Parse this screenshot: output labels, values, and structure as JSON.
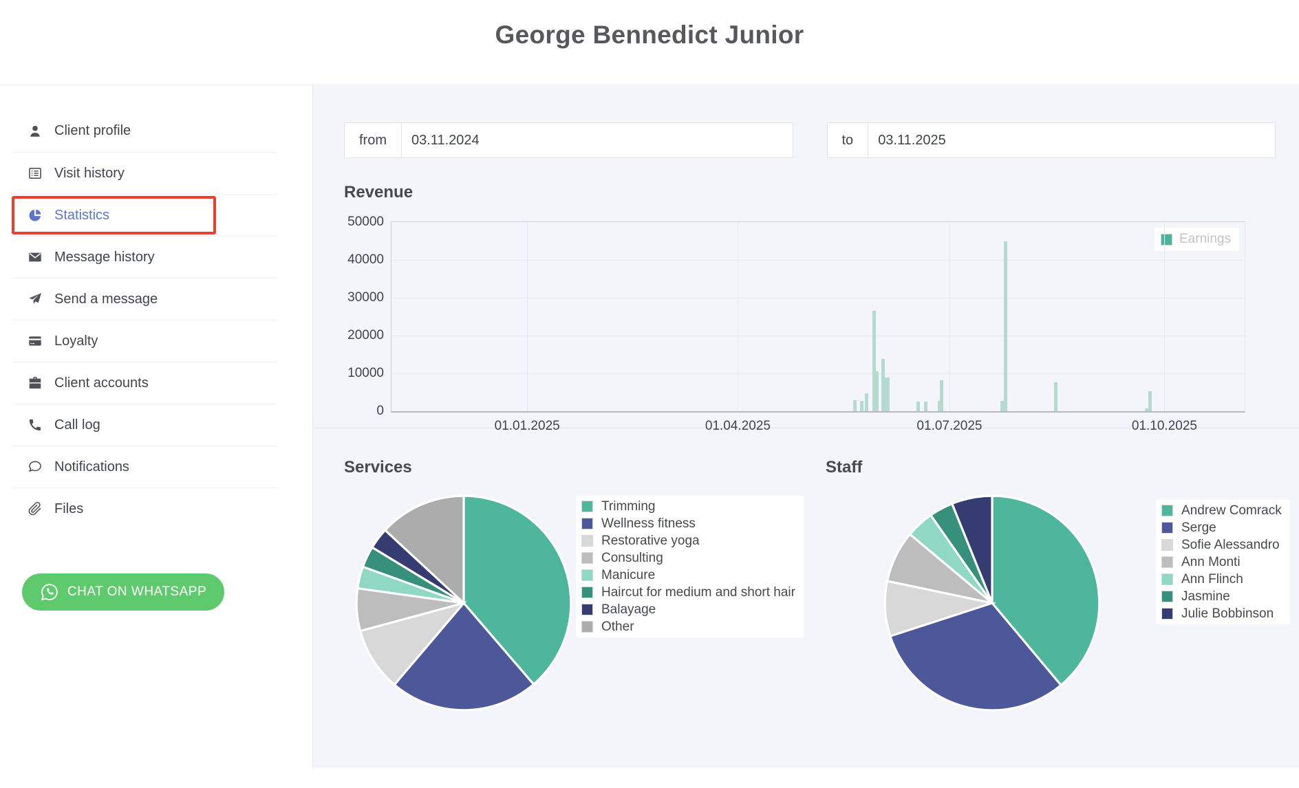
{
  "header": {
    "title": "George Bennedict Junior"
  },
  "sidebar": {
    "items": [
      {
        "label": "Client profile",
        "icon": "user-icon"
      },
      {
        "label": "Visit history",
        "icon": "list-icon"
      },
      {
        "label": "Statistics",
        "icon": "pie-chart-icon",
        "active": true,
        "boxed": true
      },
      {
        "label": "Message history",
        "icon": "envelope-icon"
      },
      {
        "label": "Send a message",
        "icon": "send-icon"
      },
      {
        "label": "Loyalty",
        "icon": "credit-card-icon"
      },
      {
        "label": "Client accounts",
        "icon": "briefcase-icon"
      },
      {
        "label": "Call log",
        "icon": "phone-icon"
      },
      {
        "label": "Notifications",
        "icon": "chat-bubble-icon"
      },
      {
        "label": "Files",
        "icon": "paperclip-icon"
      }
    ],
    "whatsapp_button": {
      "label": "CHAT ON WHATSAPP",
      "color": "#5FC96D"
    }
  },
  "filters": {
    "from_label": "from",
    "from_value": "03.11.2024",
    "to_label": "to",
    "to_value": "03.11.2025"
  },
  "colors": {
    "accent_blue": "#5C75C7",
    "highlight_red": "#E8402C",
    "whatsapp_green": "#5FC96D",
    "teal": "#4CB49B",
    "main_background": "#F4F5FA"
  },
  "chart_data": [
    {
      "type": "bar",
      "title": "Revenue",
      "series_label": "Earnings",
      "legend_position": "top-right",
      "grid": true,
      "ylim": [
        0,
        50000
      ],
      "yticks": [
        0,
        10000,
        20000,
        30000,
        40000,
        50000
      ],
      "xticks": [
        {
          "label": "01.01.2025",
          "pos": 0.159
        },
        {
          "label": "01.04.2025",
          "pos": 0.406
        },
        {
          "label": "01.07.2025",
          "pos": 0.654
        },
        {
          "label": "01.10.2025",
          "pos": 0.906
        }
      ],
      "bar_color": "#4CB49B",
      "bar_fill": "#B5DBD1",
      "bars": [
        {
          "date": "20.05.2025",
          "value": 2900,
          "pos": 0.543
        },
        {
          "date": "23.05.2025",
          "value": 2750,
          "pos": 0.551
        },
        {
          "date": "25.05.2025",
          "value": 4800,
          "pos": 0.557
        },
        {
          "date": "29.05.2025",
          "value": 26600,
          "pos": 0.566
        },
        {
          "date": "30.05.2025",
          "value": 10600,
          "pos": 0.569
        },
        {
          "date": "01.06.2025",
          "value": 13900,
          "pos": 0.576
        },
        {
          "date": "03.06.2025",
          "value": 9000,
          "pos": 0.58,
          "w": 9
        },
        {
          "date": "16.06.2025",
          "value": 2600,
          "pos": 0.617
        },
        {
          "date": "20.06.2025",
          "value": 2600,
          "pos": 0.626
        },
        {
          "date": "25.06.2025",
          "value": 2700,
          "pos": 0.642
        },
        {
          "date": "26.06.2025",
          "value": 8200,
          "pos": 0.645
        },
        {
          "date": "22.07.2025",
          "value": 2700,
          "pos": 0.716
        },
        {
          "date": "24.07.2025",
          "value": 45000,
          "pos": 0.72
        },
        {
          "date": "14.08.2025",
          "value": 7700,
          "pos": 0.779
        },
        {
          "date": "22.09.2025",
          "value": 700,
          "pos": 0.885
        },
        {
          "date": "24.09.2025",
          "value": 5300,
          "pos": 0.889
        }
      ]
    },
    {
      "type": "pie",
      "title": "Services",
      "legend_position": "right",
      "slices": [
        {
          "label": "Trimming",
          "value_pct": 38.7,
          "color": "#4DB69C"
        },
        {
          "label": "Wellness fitness",
          "value_pct": 22.5,
          "color": "#4C5899"
        },
        {
          "label": "Restorative yoga",
          "value_pct": 9.6,
          "color": "#D8D8D8"
        },
        {
          "label": "Consulting",
          "value_pct": 6.4,
          "color": "#BDBDBD"
        },
        {
          "label": "Manicure",
          "value_pct": 3.3,
          "color": "#8FD9C4"
        },
        {
          "label": "Haircut for medium and short hair",
          "value_pct": 3.2,
          "color": "#37907B"
        },
        {
          "label": "Balayage",
          "value_pct": 3.2,
          "color": "#353C72"
        },
        {
          "label": "Other",
          "value_pct": 13.1,
          "color": "#ACACAC"
        }
      ]
    },
    {
      "type": "pie",
      "title": "Staff",
      "legend_position": "right",
      "slices": [
        {
          "label": "Andrew Comrack",
          "value_pct": 38.9,
          "color": "#4DB69C"
        },
        {
          "label": "Serge",
          "value_pct": 31.1,
          "color": "#4C5899"
        },
        {
          "label": "Sofie Alessandro",
          "value_pct": 8.3,
          "color": "#D8D8D8"
        },
        {
          "label": "Ann Monti",
          "value_pct": 7.8,
          "color": "#BDBDBD"
        },
        {
          "label": "Ann Flinch",
          "value_pct": 4.2,
          "color": "#8FD9C4"
        },
        {
          "label": "Jasmine",
          "value_pct": 3.6,
          "color": "#37907B"
        },
        {
          "label": "Julie Bobbinson",
          "value_pct": 6.1,
          "color": "#353C72"
        }
      ]
    }
  ]
}
